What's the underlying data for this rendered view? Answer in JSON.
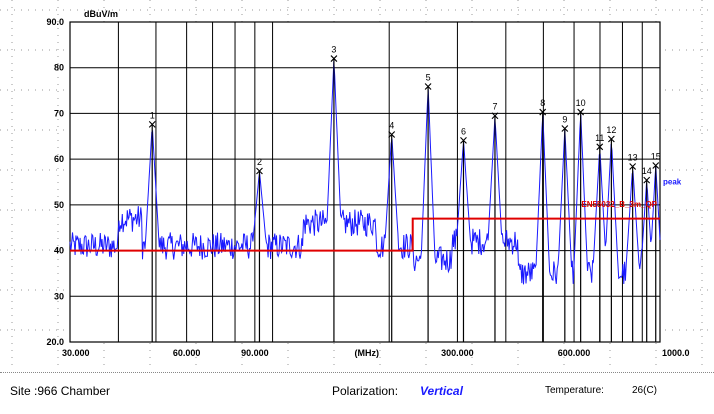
{
  "chart_data": {
    "type": "line",
    "ylabel": "dBuV/m",
    "xunit": "(MHz)",
    "x_scale": "log",
    "xlim": [
      30,
      1000
    ],
    "ylim": [
      20,
      90
    ],
    "x_ticks": [
      {
        "value": 30,
        "label": "30.000"
      },
      {
        "value": 60,
        "label": "60.000"
      },
      {
        "value": 90,
        "label": "90.000"
      },
      {
        "value": 300,
        "label": "300.000"
      },
      {
        "value": 600,
        "label": "600.000"
      },
      {
        "value": 1000,
        "label": "1000.0"
      }
    ],
    "y_ticks": [
      {
        "value": 90,
        "label": "90.0"
      },
      {
        "value": 80,
        "label": "80"
      },
      {
        "value": 70,
        "label": "70"
      },
      {
        "value": 60,
        "label": "60"
      },
      {
        "value": 50,
        "label": "50"
      },
      {
        "value": 40,
        "label": "40"
      },
      {
        "value": 30,
        "label": "30"
      },
      {
        "value": 20,
        "label": "20.0"
      }
    ],
    "grid": true,
    "limit_line": {
      "name": "EN55032_B_3m_QP",
      "color": "#e00000",
      "segments": [
        {
          "x": [
            30,
            230
          ],
          "y": 40
        },
        {
          "x": [
            230,
            1000
          ],
          "y": 47
        }
      ]
    },
    "series": [
      {
        "name": "peak",
        "color": "#1a1aff",
        "baseline": 41,
        "noise": 3
      }
    ],
    "markers": [
      {
        "id": "1",
        "x": 48.9,
        "y": 67.6
      },
      {
        "id": "2",
        "x": 92.5,
        "y": 57.4
      },
      {
        "id": "3",
        "x": 144,
        "y": 82.0
      },
      {
        "id": "4",
        "x": 203,
        "y": 65.4
      },
      {
        "id": "5",
        "x": 252,
        "y": 75.9
      },
      {
        "id": "6",
        "x": 311,
        "y": 64.1
      },
      {
        "id": "7",
        "x": 375,
        "y": 69.5
      },
      {
        "id": "8",
        "x": 498,
        "y": 70.3
      },
      {
        "id": "9",
        "x": 568,
        "y": 66.7
      },
      {
        "id": "10",
        "x": 624,
        "y": 70.3
      },
      {
        "id": "11",
        "x": 699,
        "y": 62.7
      },
      {
        "id": "12",
        "x": 749,
        "y": 64.4
      },
      {
        "id": "13",
        "x": 850,
        "y": 58.4
      },
      {
        "id": "14",
        "x": 924,
        "y": 55.4
      },
      {
        "id": "15",
        "x": 975,
        "y": 58.6
      }
    ]
  },
  "footer": {
    "site_label": "Site :966 Chamber",
    "polarization_label": "Polarization:",
    "polarization_value": "Vertical",
    "temperature_label": "Temperature:",
    "temperature_value": "26(C)"
  },
  "colors": {
    "trace": "#1a1aff",
    "limit": "#e00000",
    "grid": "#000000"
  }
}
